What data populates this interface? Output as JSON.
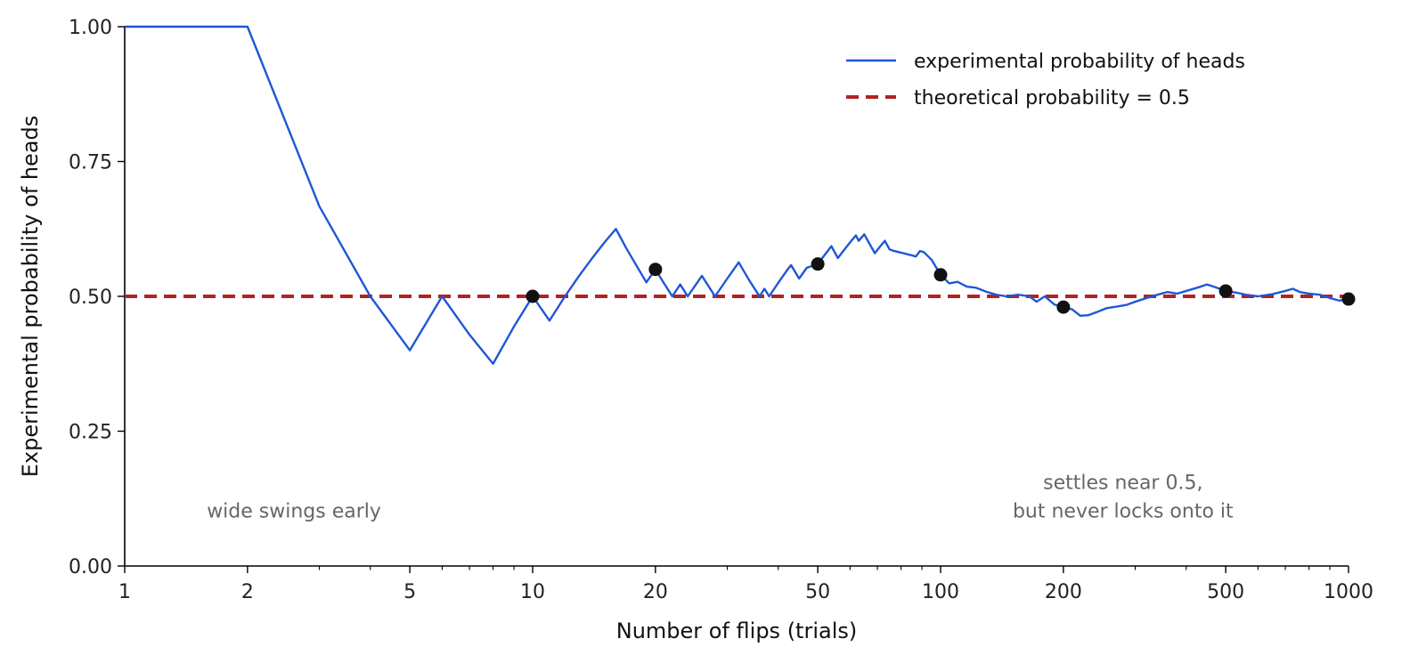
{
  "chart_data": {
    "type": "line",
    "title": "",
    "xlabel": "Number of flips (trials)",
    "ylabel": "Experimental probability of heads",
    "x_scale": "log",
    "xlim": [
      1,
      1000
    ],
    "ylim": [
      0,
      1
    ],
    "x_ticks": [
      {
        "value": 1,
        "label": "1"
      },
      {
        "value": 2,
        "label": "2"
      },
      {
        "value": 5,
        "label": "5"
      },
      {
        "value": 10,
        "label": "10"
      },
      {
        "value": 20,
        "label": "20"
      },
      {
        "value": 50,
        "label": "50"
      },
      {
        "value": 100,
        "label": "100"
      },
      {
        "value": 200,
        "label": "200"
      },
      {
        "value": 500,
        "label": "500"
      },
      {
        "value": 1000,
        "label": "1000"
      }
    ],
    "y_ticks": [
      {
        "value": 0,
        "label": "0.00"
      },
      {
        "value": 0.25,
        "label": "0.25"
      },
      {
        "value": 0.5,
        "label": "0.50"
      },
      {
        "value": 0.75,
        "label": "0.75"
      },
      {
        "value": 1,
        "label": "1.00"
      }
    ],
    "grid": false,
    "legend": {
      "placement": "top-right",
      "entries": [
        {
          "label": "experimental probability of heads",
          "style": "solid",
          "color": "#1f57d6"
        },
        {
          "label": "theoretical probability = 0.5",
          "style": "dashed",
          "color": "#b22222"
        }
      ]
    },
    "series": [
      {
        "name": "experimental probability of heads",
        "color": "#1f57d6",
        "points": [
          [
            1,
            1.0
          ],
          [
            2,
            1.0
          ],
          [
            3,
            0.667
          ],
          [
            4,
            0.5
          ],
          [
            5,
            0.4
          ],
          [
            6,
            0.5
          ],
          [
            7,
            0.429
          ],
          [
            8,
            0.375
          ],
          [
            9,
            0.444
          ],
          [
            10,
            0.5
          ],
          [
            11,
            0.455
          ],
          [
            12,
            0.5
          ],
          [
            13,
            0.538
          ],
          [
            14,
            0.571
          ],
          [
            15,
            0.6
          ],
          [
            16,
            0.625
          ],
          [
            17,
            0.588
          ],
          [
            18,
            0.556
          ],
          [
            19,
            0.526
          ],
          [
            20,
            0.55
          ],
          [
            21,
            0.524
          ],
          [
            22,
            0.5
          ],
          [
            23,
            0.522
          ],
          [
            24,
            0.5
          ],
          [
            26,
            0.538
          ],
          [
            28,
            0.5
          ],
          [
            30,
            0.533
          ],
          [
            32,
            0.563
          ],
          [
            34,
            0.529
          ],
          [
            36,
            0.5
          ],
          [
            37,
            0.514
          ],
          [
            38,
            0.5
          ],
          [
            40,
            0.525
          ],
          [
            42,
            0.548
          ],
          [
            43,
            0.558
          ],
          [
            45,
            0.533
          ],
          [
            47,
            0.553
          ],
          [
            50,
            0.56
          ],
          [
            52,
            0.577
          ],
          [
            54,
            0.593
          ],
          [
            56,
            0.571
          ],
          [
            58,
            0.586
          ],
          [
            60,
            0.6
          ],
          [
            62,
            0.613
          ],
          [
            63,
            0.603
          ],
          [
            65,
            0.615
          ],
          [
            67,
            0.597
          ],
          [
            69,
            0.58
          ],
          [
            71,
            0.592
          ],
          [
            73,
            0.603
          ],
          [
            75,
            0.587
          ],
          [
            77,
            0.584
          ],
          [
            79,
            0.582
          ],
          [
            81,
            0.58
          ],
          [
            83,
            0.578
          ],
          [
            85,
            0.576
          ],
          [
            87,
            0.574
          ],
          [
            89,
            0.584
          ],
          [
            91,
            0.582
          ],
          [
            95,
            0.568
          ],
          [
            100,
            0.54
          ],
          [
            105,
            0.524
          ],
          [
            110,
            0.527
          ],
          [
            116,
            0.518
          ],
          [
            122,
            0.516
          ],
          [
            130,
            0.508
          ],
          [
            137,
            0.503
          ],
          [
            145,
            0.5
          ],
          [
            155,
            0.503
          ],
          [
            165,
            0.5
          ],
          [
            172,
            0.49
          ],
          [
            180,
            0.5
          ],
          [
            190,
            0.485
          ],
          [
            200,
            0.48
          ],
          [
            210,
            0.476
          ],
          [
            220,
            0.464
          ],
          [
            230,
            0.465
          ],
          [
            240,
            0.47
          ],
          [
            255,
            0.478
          ],
          [
            270,
            0.481
          ],
          [
            285,
            0.484
          ],
          [
            300,
            0.49
          ],
          [
            320,
            0.497
          ],
          [
            340,
            0.503
          ],
          [
            360,
            0.508
          ],
          [
            380,
            0.505
          ],
          [
            400,
            0.51
          ],
          [
            430,
            0.517
          ],
          [
            450,
            0.522
          ],
          [
            475,
            0.516
          ],
          [
            500,
            0.51
          ],
          [
            530,
            0.507
          ],
          [
            560,
            0.503
          ],
          [
            600,
            0.5
          ],
          [
            650,
            0.504
          ],
          [
            700,
            0.51
          ],
          [
            730,
            0.514
          ],
          [
            760,
            0.508
          ],
          [
            800,
            0.505
          ],
          [
            850,
            0.503
          ],
          [
            900,
            0.497
          ],
          [
            950,
            0.492
          ],
          [
            1000,
            0.495
          ]
        ]
      },
      {
        "name": "theoretical probability = 0.5",
        "color": "#b22222",
        "style": "dashed",
        "points": [
          [
            1,
            0.5
          ],
          [
            1000,
            0.5
          ]
        ]
      }
    ],
    "markers": {
      "color": "#111111",
      "points": [
        [
          10,
          0.5
        ],
        [
          20,
          0.55
        ],
        [
          50,
          0.56
        ],
        [
          100,
          0.54
        ],
        [
          200,
          0.48
        ],
        [
          500,
          0.51
        ],
        [
          1000,
          0.495
        ]
      ]
    },
    "annotations": [
      {
        "lines": [
          "wide swings early"
        ],
        "x": 2.6,
        "y": 0.07
      },
      {
        "lines": [
          "settles near 0.5,",
          "but never locks onto it"
        ],
        "x": 280,
        "y": 0.07
      }
    ]
  }
}
